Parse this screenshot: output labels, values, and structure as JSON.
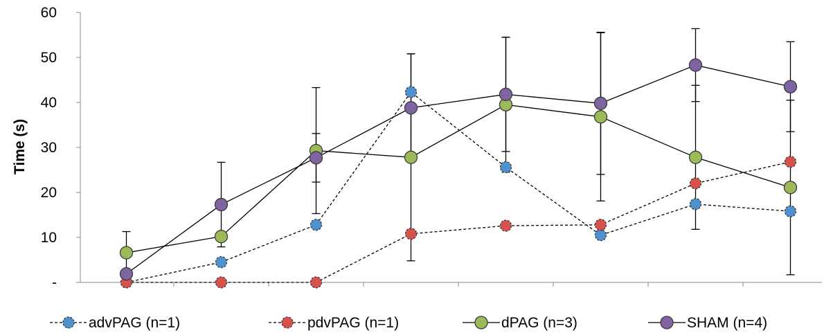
{
  "chart_data": {
    "type": "line",
    "title": "",
    "xlabel": "",
    "ylabel": "Time (s)",
    "ylim": [
      0,
      60
    ],
    "yticks": [
      0,
      10,
      20,
      30,
      40,
      50,
      60
    ],
    "ytick_labels": [
      "-",
      "10",
      "20",
      "30",
      "40",
      "50",
      "60"
    ],
    "x": [
      1,
      2,
      3,
      4,
      5,
      6,
      7,
      8
    ],
    "grid": false,
    "legend_position": "bottom",
    "series": [
      {
        "name": "advPAG (n=1)",
        "line_style": "dashed",
        "marker_color": "#4F91CD",
        "values": [
          0,
          4.5,
          12.8,
          42.3,
          25.6,
          10.5,
          17.4,
          15.8
        ],
        "error": [
          0,
          0,
          0,
          0,
          0,
          0,
          0,
          0
        ]
      },
      {
        "name": "pdvPAG (n=1)",
        "line_style": "dashed",
        "marker_color": "#D7524C",
        "values": [
          0,
          0,
          0,
          10.8,
          12.6,
          12.8,
          22.0,
          26.8
        ],
        "error": [
          0,
          0,
          0,
          0,
          0,
          0,
          0,
          0
        ]
      },
      {
        "name": "dPAG (n=3)",
        "line_style": "solid",
        "marker_color": "#9BBB59",
        "values": [
          6.6,
          10.2,
          29.3,
          27.8,
          39.5,
          36.8,
          27.8,
          21.1
        ],
        "error": [
          4.7,
          0,
          14.0,
          23.0,
          15.0,
          18.7,
          16.0,
          19.4
        ]
      },
      {
        "name": "SHAM (n=4)",
        "line_style": "solid",
        "marker_color": "#8064A2",
        "values": [
          1.9,
          17.3,
          27.7,
          38.8,
          41.8,
          39.8,
          48.3,
          43.5
        ],
        "error": [
          0,
          9.4,
          5.4,
          12.0,
          12.7,
          15.8,
          8.1,
          10.0
        ]
      }
    ]
  }
}
